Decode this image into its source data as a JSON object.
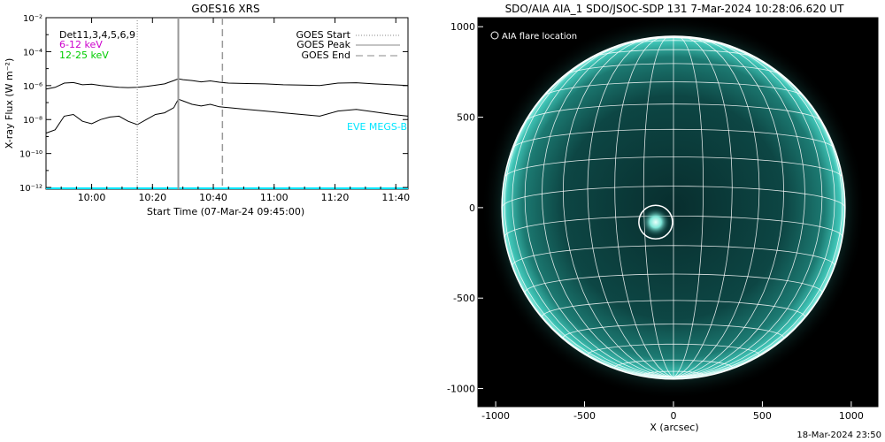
{
  "chart_data": [
    {
      "type": "line",
      "title": "GOES16 XRS",
      "xlabel": "Start Time (07-Mar-24 09:45:00)",
      "ylabel": "X-ray Flux (W m⁻²)",
      "x_tick_labels": [
        "10:00",
        "10:20",
        "10:40",
        "11:00",
        "11:20",
        "11:40"
      ],
      "x_tick_minutes": [
        15,
        35,
        55,
        75,
        95,
        115
      ],
      "xlim_minutes": [
        0,
        119
      ],
      "y_scale": "log",
      "y_tick_labels": [
        "10⁻²",
        "10⁻⁴",
        "10⁻⁶",
        "10⁻⁸",
        "10⁻¹⁰",
        "10⁻¹²"
      ],
      "y_tick_exponents": [
        -2,
        -4,
        -6,
        -8,
        -10,
        -12
      ],
      "ylim_exponent": [
        -12.1,
        -2
      ],
      "annotations": {
        "detectors": "Det11,3,4,5,6,9",
        "band_low": "6-12 keV",
        "band_high": "12-25 keV",
        "eve": "EVE MEGS-B"
      },
      "colors": {
        "band_low": "#cc00cc",
        "band_high": "#00cc00",
        "eve": "#00e5ff"
      },
      "legend": [
        "GOES Start",
        "GOES Peak",
        "GOES End"
      ],
      "legend_position": "top-right",
      "events_minutes": {
        "start": 30,
        "peak": 43.5,
        "end": 58
      },
      "series": [
        {
          "name": "6-12 keV",
          "x": [
            0,
            3,
            6,
            9,
            12,
            15,
            18,
            21,
            24,
            27,
            30,
            33,
            36,
            39,
            42,
            43.5,
            45,
            48,
            51,
            54,
            57,
            60,
            66,
            72,
            78,
            84,
            90,
            96,
            102,
            108,
            114,
            119
          ],
          "y_exponent": [
            -6.2,
            -6.1,
            -5.85,
            -5.82,
            -5.95,
            -5.92,
            -6.0,
            -6.05,
            -6.1,
            -6.12,
            -6.1,
            -6.05,
            -5.98,
            -5.9,
            -5.7,
            -5.6,
            -5.65,
            -5.7,
            -5.78,
            -5.72,
            -5.8,
            -5.85,
            -5.88,
            -5.9,
            -5.95,
            -5.97,
            -6.0,
            -5.85,
            -5.83,
            -5.9,
            -5.95,
            -6.0
          ]
        },
        {
          "name": "12-25 keV",
          "x": [
            0,
            3,
            6,
            9,
            12,
            15,
            18,
            21,
            24,
            27,
            30,
            33,
            36,
            39,
            42,
            43.5,
            45,
            48,
            51,
            54,
            57,
            60,
            66,
            72,
            78,
            84,
            90,
            96,
            102,
            108,
            114,
            119
          ],
          "y_exponent": [
            -8.8,
            -8.6,
            -7.8,
            -7.7,
            -8.1,
            -8.25,
            -8.0,
            -7.85,
            -7.8,
            -8.1,
            -8.3,
            -8.0,
            -7.7,
            -7.6,
            -7.3,
            -6.8,
            -6.9,
            -7.1,
            -7.2,
            -7.1,
            -7.25,
            -7.3,
            -7.4,
            -7.5,
            -7.6,
            -7.7,
            -7.8,
            -7.5,
            -7.4,
            -7.55,
            -7.7,
            -7.8
          ]
        },
        {
          "name": "EVE MEGS-B",
          "x": [
            0,
            119
          ],
          "y_exponent": [
            -12.05,
            -12.05
          ]
        }
      ]
    },
    {
      "type": "image",
      "title": "SDO/AIA AIA_1 SDO/JSOC-SDP 131  7-Mar-2024 10:28:06.620 UT",
      "xlabel": "X (arcsec)",
      "legend_text": "AIA flare location",
      "x_tick_labels": [
        "-1000",
        "-500",
        "0",
        "500",
        "1000"
      ],
      "x_tick_values": [
        -1000,
        -500,
        0,
        500,
        1000
      ],
      "y_tick_labels": [
        "1000",
        "500",
        "0",
        "-500",
        "-1000"
      ],
      "y_tick_values": [
        1000,
        500,
        0,
        -500,
        -1000
      ],
      "xlim": [
        -1100,
        1150
      ],
      "ylim": [
        -1100,
        1050
      ],
      "solar_radius_arcsec": 965,
      "flare_location_arcsec": [
        -100,
        -80
      ],
      "grid": true,
      "colors": {
        "disk_core": "#0b3a3a",
        "disk_limb": "#4fd9c8",
        "grid": "#ffffff"
      }
    }
  ],
  "footer": "18-Mar-2024 23:50"
}
